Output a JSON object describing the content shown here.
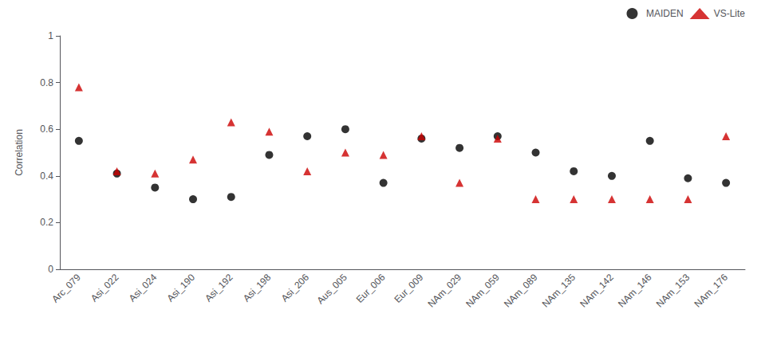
{
  "chart_data": {
    "type": "scatter",
    "categories": [
      "Arc_079",
      "Asi_022",
      "Asi_024",
      "Asi_190",
      "Asi_192",
      "Asi_198",
      "Asi_206",
      "Aus_005",
      "Eur_006",
      "Eur_009",
      "NAm_029",
      "NAm_059",
      "NAm_089",
      "NAm_135",
      "NAm_142",
      "NAm_146",
      "NAm_153",
      "NAm_176"
    ],
    "series": [
      {
        "name": "MAIDEN",
        "color": "#000000",
        "marker": "circle",
        "values": [
          0.55,
          0.41,
          0.35,
          0.3,
          0.31,
          0.49,
          0.57,
          0.6,
          0.37,
          0.56,
          0.52,
          0.57,
          0.5,
          0.42,
          0.4,
          0.55,
          0.39,
          0.37
        ]
      },
      {
        "name": "VS-Lite",
        "color": "#cc0000",
        "marker": "triangle",
        "values": [
          0.78,
          0.42,
          0.41,
          0.47,
          0.63,
          0.59,
          0.42,
          0.5,
          0.49,
          0.57,
          0.37,
          0.56,
          0.3,
          0.3,
          0.3,
          0.3,
          0.3,
          0.57
        ]
      }
    ],
    "ylabel": "Correlation",
    "ylim": [
      0,
      1.0
    ],
    "yticks": [
      0,
      0.2,
      0.4,
      0.6,
      0.8,
      1
    ],
    "grid": false,
    "legend": "upper right"
  }
}
